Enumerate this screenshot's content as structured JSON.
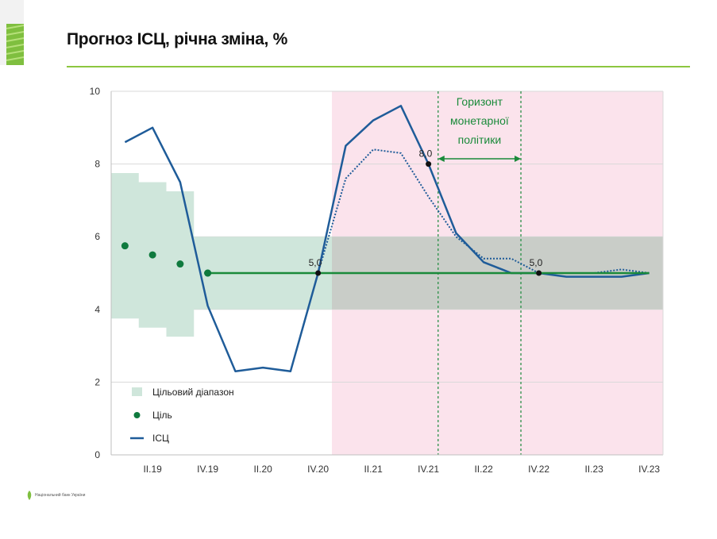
{
  "title": "Прогноз ІСЦ, річна зміна, %",
  "logo_text": "Національний банк України",
  "chart_data": {
    "type": "line",
    "title": "Прогноз ІСЦ, річна зміна, %",
    "xlabel": "",
    "ylabel": "",
    "ylim": [
      0,
      10
    ],
    "yticks": [
      0,
      2,
      4,
      6,
      8,
      10
    ],
    "grid": true,
    "x": [
      "I.19",
      "II.19",
      "III.19",
      "IV.19",
      "I.20",
      "II.20",
      "III.20",
      "IV.20",
      "I.21",
      "II.21",
      "III.21",
      "IV.21",
      "I.22",
      "II.22",
      "III.22",
      "IV.22",
      "I.23",
      "II.23",
      "III.23",
      "IV.23"
    ],
    "xtick_labels": [
      "II.19",
      "IV.19",
      "II.20",
      "IV.20",
      "II.21",
      "IV.21",
      "II.22",
      "IV.22",
      "II.23",
      "IV.23"
    ],
    "series": [
      {
        "name": "ІСЦ",
        "kind": "line",
        "color": "#1f5c99",
        "values": [
          8.6,
          9.0,
          7.5,
          4.1,
          2.3,
          2.4,
          2.3,
          5.0,
          8.5,
          9.2,
          9.6,
          8.0,
          6.1,
          5.3,
          5.0,
          5.0,
          4.9,
          4.9,
          4.9,
          5.0
        ]
      },
      {
        "name": "",
        "kind": "dotted",
        "color": "#1f5c99",
        "values": [
          null,
          null,
          null,
          null,
          null,
          null,
          null,
          5.0,
          7.6,
          8.4,
          8.3,
          7.1,
          6.0,
          5.4,
          5.4,
          5.0,
          5.0,
          5.0,
          5.1,
          5.0
        ]
      },
      {
        "name": "Ціль",
        "kind": "dots",
        "color": "#0f7a3e",
        "values": [
          5.75,
          5.5,
          5.25,
          5.0,
          null,
          null,
          null,
          null,
          null,
          null,
          null,
          null,
          null,
          null,
          null,
          null,
          null,
          null,
          null,
          null
        ]
      },
      {
        "name": "",
        "kind": "target_line",
        "color": "#1a8a3a",
        "values": [
          null,
          null,
          null,
          5.0,
          5.0,
          5.0,
          5.0,
          5.0,
          5.0,
          5.0,
          5.0,
          5.0,
          5.0,
          5.0,
          5.0,
          5.0,
          5.0,
          5.0,
          5.0,
          5.0
        ]
      }
    ],
    "target_band": {
      "name": "Цільовий діапазон",
      "color": "#cfe6db",
      "upper": [
        7.75,
        7.5,
        7.25,
        6.0,
        6.0,
        6.0,
        6.0,
        6.0,
        6.0,
        6.0,
        6.0,
        6.0,
        6.0,
        6.0,
        6.0,
        6.0,
        6.0,
        6.0,
        6.0,
        6.0
      ],
      "lower": [
        3.75,
        3.5,
        3.25,
        4.0,
        4.0,
        4.0,
        4.0,
        4.0,
        4.0,
        4.0,
        4.0,
        4.0,
        4.0,
        4.0,
        4.0,
        4.0,
        4.0,
        4.0,
        4.0,
        4.0
      ]
    },
    "forecast_shading": {
      "from_x": "I.21",
      "color": "#fbe3ec",
      "overlap_color": "#c9cdc8"
    },
    "policy_horizon": {
      "label": "Горизонт монетарної політики",
      "from_x": "IV.21",
      "to_x": "III.22",
      "color": "#1a8a3a"
    },
    "annotations": [
      {
        "text": "5,0",
        "x": "IV.20",
        "y": 5.0
      },
      {
        "text": "8,0",
        "x": "IV.21",
        "y": 8.0
      },
      {
        "text": "5,0",
        "x": "IV.22",
        "y": 5.0
      }
    ],
    "legend": {
      "placement": "bottom-left",
      "entries": [
        {
          "label": "Цільовий діапазон",
          "kind": "band"
        },
        {
          "label": "Ціль",
          "kind": "dot"
        },
        {
          "label": "ІСЦ",
          "kind": "line"
        }
      ]
    }
  }
}
